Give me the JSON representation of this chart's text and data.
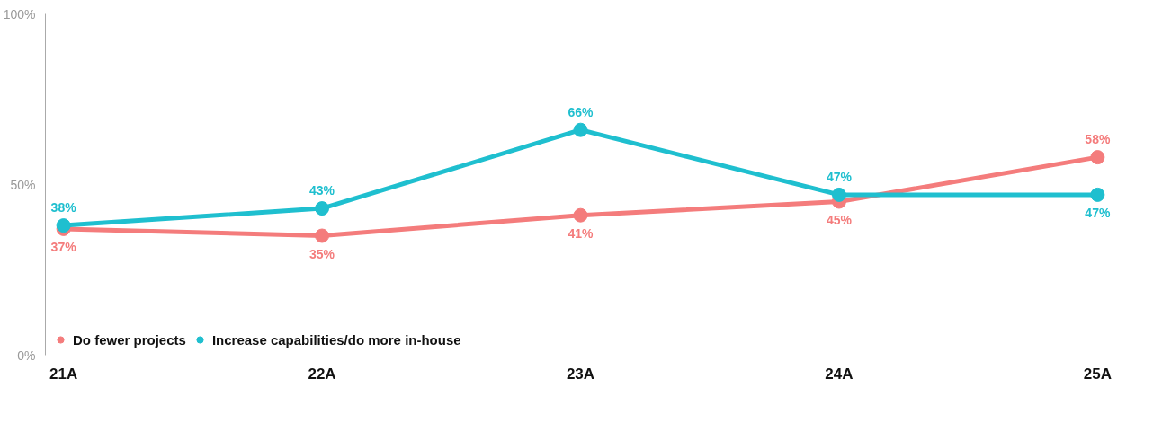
{
  "chart_data": {
    "type": "line",
    "categories": [
      "21A",
      "22A",
      "23A",
      "24A",
      "25A"
    ],
    "series": [
      {
        "name": "Do fewer projects",
        "color": "#f47c7c",
        "values": [
          37,
          35,
          41,
          45,
          58
        ],
        "value_labels": [
          "37%",
          "35%",
          "41%",
          "45%",
          "58%"
        ]
      },
      {
        "name": "Increase capabilities/do more in-house",
        "color": "#1fbfcf",
        "values": [
          38,
          43,
          66,
          47,
          47
        ],
        "value_labels": [
          "38%",
          "43%",
          "66%",
          "47%",
          "47%"
        ]
      }
    ],
    "ylim": [
      0,
      100
    ],
    "yticks": [
      {
        "value": 0,
        "label": "0%"
      },
      {
        "value": 50,
        "label": "50%"
      },
      {
        "value": 100,
        "label": "100%"
      }
    ],
    "legend": "bottom left",
    "marker": "circle",
    "line_style": "solid"
  }
}
